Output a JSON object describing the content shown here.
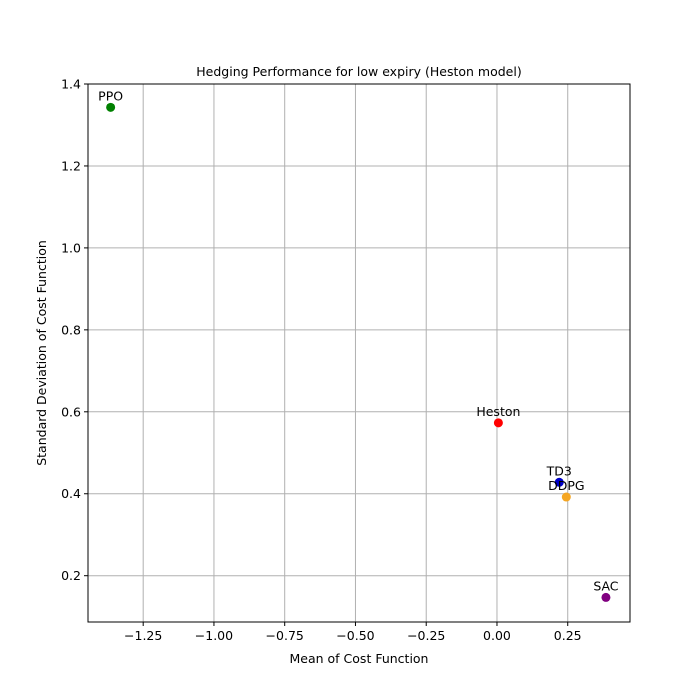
{
  "chart_data": {
    "type": "scatter",
    "title": "Hedging Performance for low expiry (Heston model)",
    "xlabel": "Mean of Cost Function",
    "ylabel": "Standard Deviation of Cost Function",
    "xlim": [
      -1.445,
      0.47
    ],
    "ylim": [
      0.087,
      1.4
    ],
    "x_ticks": [
      -1.25,
      -1.0,
      -0.75,
      -0.5,
      -0.25,
      0.0,
      0.25
    ],
    "x_tick_labels": [
      "−1.25",
      "−1.00",
      "−0.75",
      "−0.50",
      "−0.25",
      "0.00",
      "0.25"
    ],
    "y_ticks": [
      0.2,
      0.4,
      0.6,
      0.8,
      1.0,
      1.2,
      1.4
    ],
    "y_tick_labels": [
      "0.2",
      "0.4",
      "0.6",
      "0.8",
      "1.0",
      "1.2",
      "1.4"
    ],
    "grid": true,
    "points": [
      {
        "label": "PPO",
        "x": -1.365,
        "y": 1.343,
        "color": "#008000"
      },
      {
        "label": "Heston",
        "x": 0.005,
        "y": 0.573,
        "color": "#ff0000"
      },
      {
        "label": "TD3",
        "x": 0.22,
        "y": 0.428,
        "color": "#0000cc"
      },
      {
        "label": "DDPG",
        "x": 0.245,
        "y": 0.392,
        "color": "#f5a623"
      },
      {
        "label": "SAC",
        "x": 0.385,
        "y": 0.147,
        "color": "#800080"
      }
    ]
  }
}
